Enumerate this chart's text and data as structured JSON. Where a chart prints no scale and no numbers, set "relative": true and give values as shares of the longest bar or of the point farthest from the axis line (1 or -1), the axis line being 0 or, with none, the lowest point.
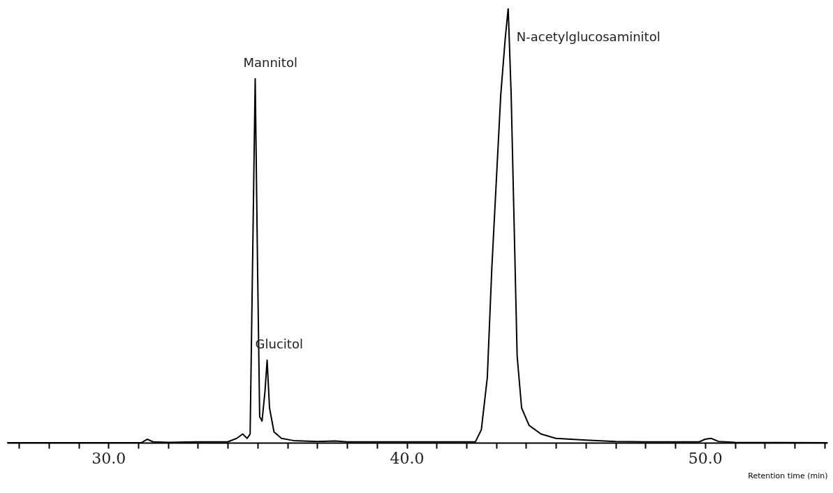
{
  "chart_data": {
    "type": "line",
    "relative": true,
    "xlabel": "Retention time (min)",
    "xlim": [
      26.6,
      54.1
    ],
    "xticks": [
      {
        "value": 27,
        "label": null
      },
      {
        "value": 28,
        "label": null
      },
      {
        "value": 29,
        "label": null
      },
      {
        "value": 30,
        "label": "30.0"
      },
      {
        "value": 31,
        "label": null
      },
      {
        "value": 32,
        "label": null
      },
      {
        "value": 33,
        "label": null
      },
      {
        "value": 34,
        "label": null
      },
      {
        "value": 35,
        "label": null
      },
      {
        "value": 36,
        "label": null
      },
      {
        "value": 37,
        "label": null
      },
      {
        "value": 38,
        "label": null
      },
      {
        "value": 39,
        "label": null
      },
      {
        "value": 40,
        "label": "40.0"
      },
      {
        "value": 41,
        "label": null
      },
      {
        "value": 42,
        "label": null
      },
      {
        "value": 43,
        "label": null
      },
      {
        "value": 44,
        "label": null
      },
      {
        "value": 45,
        "label": null
      },
      {
        "value": 46,
        "label": null
      },
      {
        "value": 47,
        "label": null
      },
      {
        "value": 48,
        "label": null
      },
      {
        "value": 49,
        "label": null
      },
      {
        "value": 50,
        "label": "50.0"
      },
      {
        "value": 51,
        "label": null
      },
      {
        "value": 52,
        "label": null
      },
      {
        "value": 53,
        "label": null
      },
      {
        "value": 54,
        "label": null
      }
    ],
    "x": [
      26.6,
      31.1,
      31.3,
      31.5,
      32,
      33,
      34,
      34.3,
      34.5,
      34.65,
      34.75,
      34.85,
      34.92,
      35.0,
      35.07,
      35.15,
      35.25,
      35.32,
      35.4,
      35.55,
      35.8,
      36.2,
      37,
      37.6,
      38,
      42.3,
      42.5,
      42.7,
      42.85,
      43.0,
      43.15,
      43.3,
      43.4,
      43.5,
      43.6,
      43.7,
      43.85,
      44.1,
      44.5,
      45,
      46,
      47,
      48,
      49.8,
      50.0,
      50.2,
      50.45,
      51,
      54.1
    ],
    "series": [
      {
        "color": "#000000",
        "values": [
          0,
          0,
          0.008,
          0.002,
          0.001,
          0.002,
          0.002,
          0.01,
          0.02,
          0.01,
          0.02,
          0.5,
          0.838,
          0.4,
          0.06,
          0.05,
          0.12,
          0.19,
          0.08,
          0.025,
          0.01,
          0.005,
          0.003,
          0.004,
          0.002,
          0.002,
          0.03,
          0.15,
          0.4,
          0.6,
          0.8,
          0.93,
          1,
          0.8,
          0.5,
          0.2,
          0.08,
          0.04,
          0.02,
          0.01,
          0.006,
          0.003,
          0.002,
          0.002,
          0.008,
          0.01,
          0.003,
          0.001,
          0
        ]
      }
    ],
    "annotations": [
      {
        "text": "Mannitol",
        "x": 34.92,
        "y": 0.838
      },
      {
        "text": "Glucitol",
        "x": 35.32,
        "y": 0.19
      },
      {
        "text": "N-acetylglucosaminitol",
        "x": 43.4,
        "y": 1
      }
    ],
    "grid": false
  }
}
